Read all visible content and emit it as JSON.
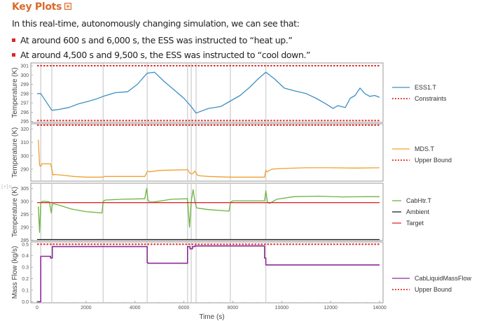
{
  "section": {
    "title": "Key Plots",
    "toggle_icon": "dropdown-toggle-icon"
  },
  "intro": "In this real-time, autonomously changing simulation, we can see that:",
  "bullets": [
    "At around 600 s and 6,000 s, the ESS was instructed to “heat up.”",
    "At around 4,500 s and 9,500 s, the ESS was instructed to “cool down.”"
  ],
  "cell_marker": "[•]=",
  "chart_data": [
    {
      "type": "line",
      "ylabel": "Temperature (K)",
      "ylim": [
        294.9,
        301.3
      ],
      "yticks": [
        295,
        296,
        297,
        298,
        299,
        300,
        301
      ],
      "xlim": [
        -300,
        14100
      ],
      "legend_position": "right",
      "series": [
        {
          "name": "ESS1.T",
          "color": "#3c8fc4",
          "style": "solid",
          "x": [
            0,
            150,
            600,
            900,
            1300,
            1700,
            2000,
            2400,
            2700,
            3200,
            3700,
            4100,
            4500,
            4800,
            5200,
            5600,
            6000,
            6300,
            6500,
            7000,
            7500,
            7900,
            8300,
            8700,
            9000,
            9350,
            9700,
            10100,
            10500,
            11000,
            11400,
            11800,
            12100,
            12300,
            12600,
            12800,
            13000,
            13200,
            13400,
            13600,
            13800,
            14000
          ],
          "y": [
            298.0,
            298.0,
            296.2,
            296.3,
            296.5,
            296.9,
            297.1,
            297.4,
            297.7,
            298.1,
            298.2,
            299.0,
            300.2,
            300.3,
            299.3,
            298.4,
            297.5,
            296.6,
            295.9,
            296.4,
            296.6,
            297.2,
            297.8,
            298.7,
            299.5,
            300.3,
            299.6,
            298.6,
            298.3,
            298.0,
            297.5,
            296.9,
            296.4,
            296.7,
            296.5,
            297.5,
            297.8,
            298.6,
            298.0,
            297.7,
            297.8,
            297.6
          ]
        },
        {
          "name": "Constraints",
          "color": "#e02b2b",
          "style": "dashed",
          "x": [
            0,
            14000
          ],
          "y_upper": 301.0,
          "y_lower": 295.1
        }
      ]
    },
    {
      "type": "line",
      "ylabel": "Temperature (K)",
      "ylim": [
        281,
        324
      ],
      "yticks": [
        290,
        300,
        310,
        320
      ],
      "xlim": [
        -300,
        14100
      ],
      "legend_position": "right",
      "series": [
        {
          "name": "MDS.T",
          "color": "#f0a030",
          "style": "solid",
          "x": [
            50,
            100,
            150,
            200,
            300,
            550,
            600,
            650,
            700,
            1000,
            1500,
            2000,
            2700,
            2750,
            3500,
            4400,
            4500,
            4550,
            4600,
            5000,
            6100,
            6150,
            6250,
            6350,
            6450,
            6550,
            6650,
            7000,
            7900,
            8500,
            9300,
            9350,
            9400,
            9600,
            10000,
            11000,
            12000,
            13000,
            14000
          ],
          "y": [
            312,
            293,
            292,
            294,
            294,
            294,
            290,
            285.5,
            286,
            285.5,
            284.5,
            284,
            284,
            284.5,
            284.5,
            284.5,
            288,
            288.5,
            288,
            289,
            289.5,
            289.8,
            286.8,
            286.5,
            288.5,
            285.5,
            285,
            284.5,
            284,
            284,
            284,
            289,
            288,
            290,
            290.5,
            291,
            291,
            290.8,
            291
          ]
        },
        {
          "name": "Upper Bound",
          "color": "#e02b2b",
          "style": "dashed",
          "x": [
            0,
            14000
          ],
          "y": 323
        }
      ]
    },
    {
      "type": "line",
      "ylabel": "Temperature (K)",
      "ylim": [
        284.8,
        307
      ],
      "yticks": [
        285,
        290,
        295,
        300,
        305
      ],
      "xlim": [
        -300,
        14100
      ],
      "legend_position": "right",
      "series": [
        {
          "name": "CabHtr.T",
          "color": "#6db33f",
          "style": "solid",
          "x": [
            50,
            100,
            150,
            220,
            300,
            500,
            580,
            620,
            700,
            900,
            1400,
            2000,
            2650,
            2700,
            2800,
            3500,
            4400,
            4480,
            4530,
            4600,
            4800,
            5500,
            6150,
            6230,
            6300,
            6380,
            6450,
            6520,
            6600,
            7000,
            7850,
            7900,
            8000,
            8800,
            9300,
            9350,
            9420,
            9500,
            9800,
            10500,
            11500,
            12500,
            13500,
            14000
          ],
          "y": [
            298,
            288,
            299.5,
            300,
            300,
            299.8,
            295.5,
            299,
            299,
            298.5,
            297,
            296,
            295.5,
            300,
            300.5,
            300.8,
            301,
            305,
            300.5,
            299.7,
            299.8,
            300.8,
            301,
            290,
            300,
            304.5,
            300,
            297.5,
            297.3,
            296.8,
            296.2,
            299.5,
            300.2,
            300.2,
            300.2,
            304,
            299.5,
            299.2,
            300.8,
            301.8,
            302,
            301.7,
            301.8,
            301.8
          ]
        },
        {
          "name": "Ambient",
          "color": "#222222",
          "style": "solid",
          "x": [
            0,
            14000
          ],
          "y": 285.2
        },
        {
          "name": "Target",
          "color": "#e02b2b",
          "style": "solid",
          "x": [
            0,
            14000
          ],
          "y": 299.5
        }
      ]
    },
    {
      "type": "line",
      "ylabel": "Mass Flow (kg/s)",
      "xlabel": "Time (s)",
      "ylim": [
        -0.01,
        0.52
      ],
      "yticks": [
        0.0,
        0.1,
        0.2,
        0.3,
        0.4,
        0.5
      ],
      "yticklabels": [
        "0.0",
        "0.1",
        "0.2",
        "0.3",
        "0.4",
        "0.5"
      ],
      "xlim": [
        -300,
        14100
      ],
      "xticks": [
        0,
        2000,
        4000,
        6000,
        8000,
        10000,
        12000,
        14000
      ],
      "xticklabels": [
        "0",
        "2000",
        "4000",
        "6000",
        "8000",
        "10000",
        "12000",
        "14000"
      ],
      "legend_position": "right",
      "series": [
        {
          "name": "CabLiquidMassFlow",
          "color": "#8b2a96",
          "style": "solid",
          "step": true,
          "x": [
            0,
            150,
            550,
            620,
            4500,
            4530,
            6150,
            6250,
            6350,
            6450,
            9300,
            9350,
            14000
          ],
          "y": [
            0.0,
            0.395,
            0.38,
            0.48,
            0.34,
            0.335,
            0.48,
            0.46,
            0.48,
            0.485,
            0.38,
            0.32,
            0.32
          ]
        },
        {
          "name": "Upper Bound",
          "color": "#e02b2b",
          "style": "dashed",
          "x": [
            0,
            14000
          ],
          "y": 0.5
        }
      ]
    }
  ],
  "event_lines": [
    150,
    600,
    2700,
    4500,
    6150,
    6300,
    6500,
    7900,
    9350
  ]
}
